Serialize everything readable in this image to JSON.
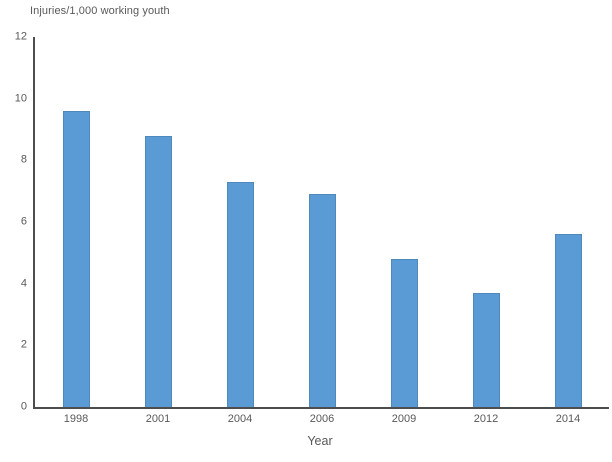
{
  "chart_data": {
    "type": "bar",
    "title": "",
    "ylabel": "Injuries/1,000 working youth",
    "xlabel": "Year",
    "categories": [
      "1998",
      "2001",
      "2004",
      "2006",
      "2009",
      "2012",
      "2014"
    ],
    "values": [
      9.6,
      8.8,
      7.3,
      6.9,
      4.8,
      3.7,
      5.6
    ],
    "ylim": [
      0,
      12
    ],
    "ytick_step": 2,
    "ytick_labels": [
      "0",
      "2",
      "4",
      "6",
      "8",
      "10",
      "12"
    ],
    "grid": false,
    "legend": false,
    "bar_color": "#5b9bd5",
    "bar_border_color": "#4f8ecb",
    "axis_line_color": "#4d4d4d",
    "label_color": "#595959",
    "background_color": "#ffffff"
  }
}
